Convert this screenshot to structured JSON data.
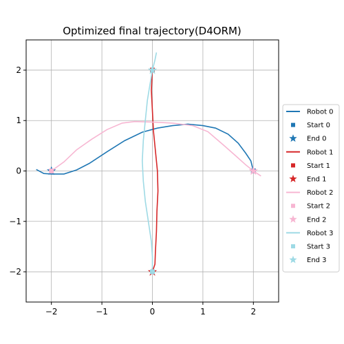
{
  "chart_data": {
    "type": "line",
    "title": "Optimized final trajectory(D4ORM)",
    "xlim": [
      -2.5,
      2.5
    ],
    "ylim": [
      -2.6,
      2.6
    ],
    "xticks": [
      -2,
      -1,
      0,
      1,
      2
    ],
    "yticks": [
      -2,
      -1,
      0,
      1,
      2
    ],
    "grid": true,
    "legend_position": "outside-right",
    "series": [
      {
        "name": "Robot 0",
        "color": "#1f77b4",
        "start": [
          2.0,
          0.0
        ],
        "end": [
          -2.0,
          0.0
        ],
        "start_label": "Start 0",
        "end_label": "End 0",
        "points": [
          [
            2.0,
            0.0
          ],
          [
            1.95,
            0.2
          ],
          [
            1.85,
            0.35
          ],
          [
            1.7,
            0.55
          ],
          [
            1.5,
            0.73
          ],
          [
            1.25,
            0.85
          ],
          [
            1.0,
            0.9
          ],
          [
            0.7,
            0.93
          ],
          [
            0.4,
            0.9
          ],
          [
            0.1,
            0.85
          ],
          [
            -0.2,
            0.77
          ],
          [
            -0.55,
            0.6
          ],
          [
            -0.9,
            0.38
          ],
          [
            -1.25,
            0.15
          ],
          [
            -1.5,
            0.02
          ],
          [
            -1.75,
            -0.06
          ],
          [
            -2.0,
            -0.06
          ],
          [
            -2.15,
            -0.05
          ],
          [
            -2.3,
            0.03
          ]
        ]
      },
      {
        "name": "Robot 1",
        "color": "#d62728",
        "start": [
          0.0,
          2.0
        ],
        "end": [
          0.0,
          -2.0
        ],
        "start_label": "Start 1",
        "end_label": "End 1",
        "points": [
          [
            0.0,
            2.0
          ],
          [
            -0.02,
            1.6
          ],
          [
            0.0,
            1.2
          ],
          [
            0.02,
            0.8
          ],
          [
            0.06,
            0.4
          ],
          [
            0.1,
            0.0
          ],
          [
            0.11,
            -0.4
          ],
          [
            0.09,
            -0.8
          ],
          [
            0.08,
            -1.2
          ],
          [
            0.06,
            -1.6
          ],
          [
            0.05,
            -1.85
          ],
          [
            0.0,
            -2.0
          ]
        ]
      },
      {
        "name": "Robot 2",
        "color": "#f7b6d2",
        "start": [
          -2.0,
          0.0
        ],
        "end": [
          2.0,
          0.0
        ],
        "start_label": "Start 2",
        "end_label": "End 2",
        "points": [
          [
            -2.0,
            0.0
          ],
          [
            -1.75,
            0.18
          ],
          [
            -1.5,
            0.42
          ],
          [
            -1.2,
            0.63
          ],
          [
            -0.9,
            0.82
          ],
          [
            -0.6,
            0.95
          ],
          [
            -0.35,
            0.98
          ],
          [
            0.0,
            0.97
          ],
          [
            0.4,
            0.95
          ],
          [
            0.8,
            0.9
          ],
          [
            1.1,
            0.78
          ],
          [
            1.4,
            0.52
          ],
          [
            1.65,
            0.3
          ],
          [
            1.85,
            0.12
          ],
          [
            2.0,
            0.0
          ],
          [
            2.15,
            -0.1
          ]
        ]
      },
      {
        "name": "Robot 3",
        "color": "#9edae5",
        "start": [
          0.0,
          -2.0
        ],
        "end": [
          0.0,
          2.0
        ],
        "start_label": "Start 3",
        "end_label": "End 3",
        "points": [
          [
            0.0,
            -2.0
          ],
          [
            0.0,
            -1.7
          ],
          [
            -0.02,
            -1.4
          ],
          [
            -0.08,
            -1.0
          ],
          [
            -0.14,
            -0.6
          ],
          [
            -0.18,
            -0.2
          ],
          [
            -0.2,
            0.2
          ],
          [
            -0.18,
            0.6
          ],
          [
            -0.14,
            1.0
          ],
          [
            -0.1,
            1.4
          ],
          [
            -0.05,
            1.7
          ],
          [
            0.0,
            2.0
          ],
          [
            0.05,
            2.2
          ],
          [
            0.08,
            2.35
          ]
        ]
      }
    ]
  }
}
